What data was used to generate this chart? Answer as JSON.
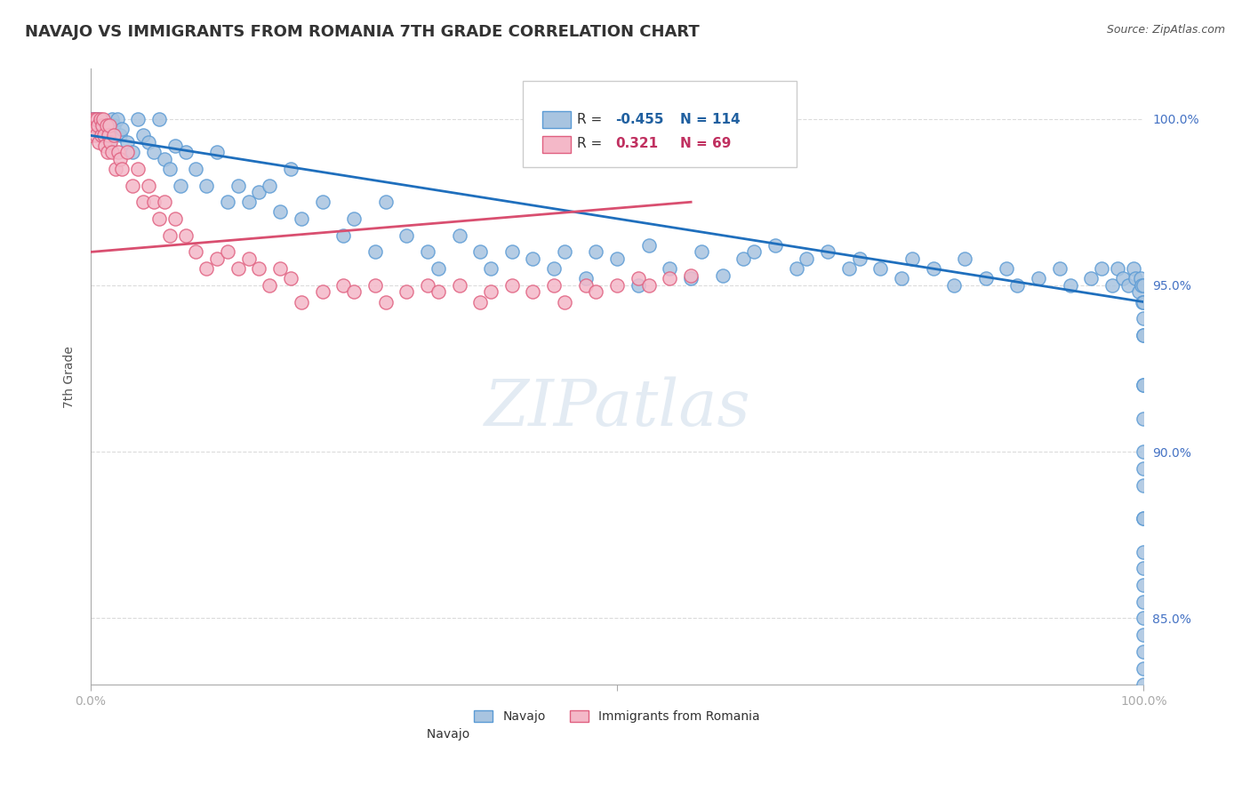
{
  "title": "NAVAJO VS IMMIGRANTS FROM ROMANIA 7TH GRADE CORRELATION CHART",
  "source_text": "Source: ZipAtlas.com",
  "xlabel": "",
  "ylabel": "7th Grade",
  "watermark": "ZIPatlas",
  "x_min": 0.0,
  "x_max": 100.0,
  "y_min": 83.0,
  "y_max": 101.5,
  "y_ticks": [
    85.0,
    90.0,
    95.0,
    100.0
  ],
  "x_ticks_labels": [
    "0.0%",
    "100.0%"
  ],
  "y_ticks_labels": [
    "85.0%",
    "90.0%",
    "95.0%",
    "100.0%"
  ],
  "navajo_color": "#a8c4e0",
  "navajo_edge_color": "#5b9bd5",
  "romania_color": "#f4b8c8",
  "romania_edge_color": "#e06080",
  "navajo_R": -0.455,
  "navajo_N": 114,
  "romania_R": 0.321,
  "romania_N": 69,
  "navajo_line_color": "#1f6fbd",
  "romania_line_color": "#d94f70",
  "legend_R_color_navajo": "#2060a0",
  "legend_R_color_romania": "#c03060",
  "background_color": "#ffffff",
  "grid_color": "#cccccc",
  "title_fontsize": 13,
  "axis_label_fontsize": 10,
  "tick_fontsize": 10,
  "watermark_color": "#c8d8e8",
  "navajo_scatter": {
    "x": [
      0.2,
      0.3,
      0.5,
      0.8,
      1.0,
      1.2,
      1.5,
      1.8,
      2.0,
      2.2,
      2.5,
      2.8,
      3.0,
      3.5,
      4.0,
      4.5,
      5.0,
      5.5,
      6.0,
      6.5,
      7.0,
      7.5,
      8.0,
      8.5,
      9.0,
      10.0,
      11.0,
      12.0,
      13.0,
      14.0,
      15.0,
      16.0,
      17.0,
      18.0,
      19.0,
      20.0,
      22.0,
      24.0,
      25.0,
      27.0,
      28.0,
      30.0,
      32.0,
      33.0,
      35.0,
      37.0,
      38.0,
      40.0,
      42.0,
      44.0,
      45.0,
      47.0,
      48.0,
      50.0,
      52.0,
      53.0,
      55.0,
      57.0,
      58.0,
      60.0,
      62.0,
      63.0,
      65.0,
      67.0,
      68.0,
      70.0,
      72.0,
      73.0,
      75.0,
      77.0,
      78.0,
      80.0,
      82.0,
      83.0,
      85.0,
      87.0,
      88.0,
      90.0,
      92.0,
      93.0,
      95.0,
      96.0,
      97.0,
      97.5,
      98.0,
      98.5,
      99.0,
      99.2,
      99.5,
      99.7,
      99.8,
      99.9,
      100.0,
      100.0,
      100.0,
      100.0,
      100.0,
      100.0,
      100.0,
      100.0,
      100.0,
      100.0,
      100.0,
      100.0,
      100.0,
      100.0,
      100.0,
      100.0,
      100.0,
      100.0,
      100.0,
      100.0,
      100.0,
      100.0
    ],
    "y": [
      100.0,
      100.0,
      100.0,
      100.0,
      99.8,
      99.6,
      99.5,
      99.3,
      100.0,
      99.8,
      100.0,
      99.5,
      99.7,
      99.3,
      99.0,
      100.0,
      99.5,
      99.3,
      99.0,
      100.0,
      98.8,
      98.5,
      99.2,
      98.0,
      99.0,
      98.5,
      98.0,
      99.0,
      97.5,
      98.0,
      97.5,
      97.8,
      98.0,
      97.2,
      98.5,
      97.0,
      97.5,
      96.5,
      97.0,
      96.0,
      97.5,
      96.5,
      96.0,
      95.5,
      96.5,
      96.0,
      95.5,
      96.0,
      95.8,
      95.5,
      96.0,
      95.2,
      96.0,
      95.8,
      95.0,
      96.2,
      95.5,
      95.2,
      96.0,
      95.3,
      95.8,
      96.0,
      96.2,
      95.5,
      95.8,
      96.0,
      95.5,
      95.8,
      95.5,
      95.2,
      95.8,
      95.5,
      95.0,
      95.8,
      95.2,
      95.5,
      95.0,
      95.2,
      95.5,
      95.0,
      95.2,
      95.5,
      95.0,
      95.5,
      95.2,
      95.0,
      95.5,
      95.2,
      94.8,
      95.2,
      95.0,
      94.5,
      93.5,
      92.0,
      91.0,
      90.0,
      89.5,
      88.0,
      87.0,
      86.5,
      86.0,
      85.5,
      85.0,
      84.5,
      84.0,
      83.5,
      83.0,
      88.0,
      89.0,
      92.0,
      93.5,
      94.0,
      94.5,
      95.0
    ]
  },
  "romania_scatter": {
    "x": [
      0.1,
      0.2,
      0.3,
      0.4,
      0.5,
      0.6,
      0.7,
      0.8,
      0.9,
      1.0,
      1.1,
      1.2,
      1.3,
      1.4,
      1.5,
      1.6,
      1.7,
      1.8,
      1.9,
      2.0,
      2.2,
      2.4,
      2.6,
      2.8,
      3.0,
      3.5,
      4.0,
      4.5,
      5.0,
      5.5,
      6.0,
      6.5,
      7.0,
      7.5,
      8.0,
      9.0,
      10.0,
      11.0,
      12.0,
      13.0,
      14.0,
      15.0,
      16.0,
      17.0,
      18.0,
      19.0,
      20.0,
      22.0,
      24.0,
      25.0,
      27.0,
      28.0,
      30.0,
      32.0,
      33.0,
      35.0,
      37.0,
      38.0,
      40.0,
      42.0,
      44.0,
      45.0,
      47.0,
      48.0,
      50.0,
      52.0,
      53.0,
      55.0,
      57.0
    ],
    "y": [
      99.5,
      100.0,
      99.8,
      100.0,
      99.5,
      100.0,
      99.8,
      99.3,
      100.0,
      99.5,
      99.8,
      100.0,
      99.5,
      99.2,
      99.8,
      99.0,
      99.5,
      99.8,
      99.3,
      99.0,
      99.5,
      98.5,
      99.0,
      98.8,
      98.5,
      99.0,
      98.0,
      98.5,
      97.5,
      98.0,
      97.5,
      97.0,
      97.5,
      96.5,
      97.0,
      96.5,
      96.0,
      95.5,
      95.8,
      96.0,
      95.5,
      95.8,
      95.5,
      95.0,
      95.5,
      95.2,
      94.5,
      94.8,
      95.0,
      94.8,
      95.0,
      94.5,
      94.8,
      95.0,
      94.8,
      95.0,
      94.5,
      94.8,
      95.0,
      94.8,
      95.0,
      94.5,
      95.0,
      94.8,
      95.0,
      95.2,
      95.0,
      95.2,
      95.3
    ]
  }
}
